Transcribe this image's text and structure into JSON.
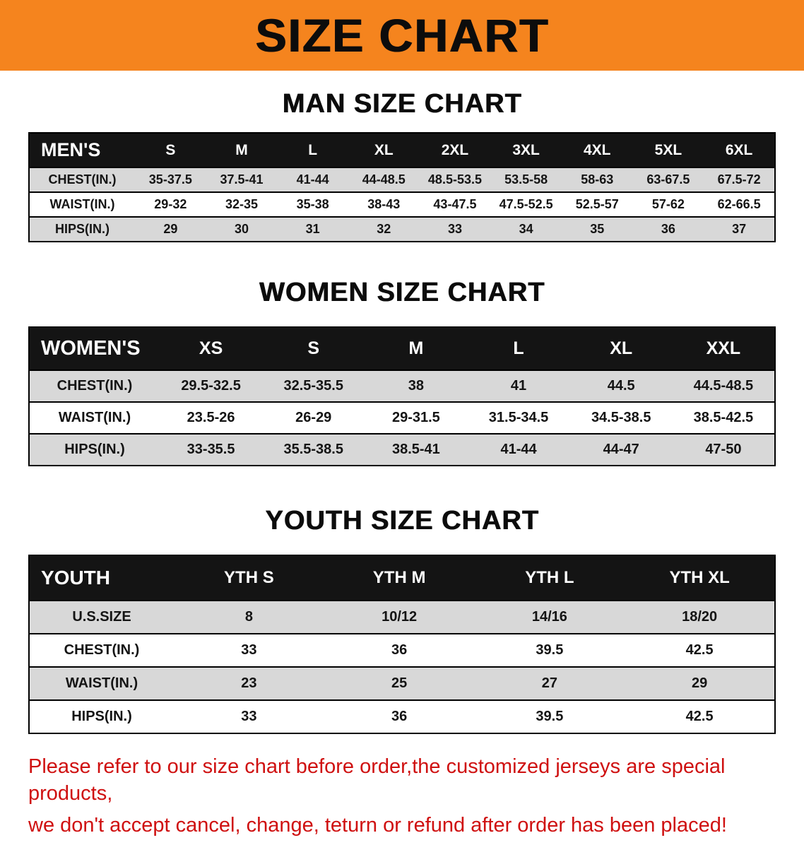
{
  "banner": {
    "title": "SIZE CHART"
  },
  "colors": {
    "banner_bg": "#f5841e",
    "header_bg": "#141414",
    "row_alt": "#d8d8d8",
    "disclaimer_text": "#cf1010"
  },
  "sections": [
    {
      "heading": "MAN SIZE CHART",
      "table": {
        "header": [
          "MEN'S",
          "S",
          "M",
          "L",
          "XL",
          "2XL",
          "3XL",
          "4XL",
          "5XL",
          "6XL"
        ],
        "rows": [
          [
            "CHEST(IN.)",
            "35-37.5",
            "37.5-41",
            "41-44",
            "44-48.5",
            "48.5-53.5",
            "53.5-58",
            "58-63",
            "63-67.5",
            "67.5-72"
          ],
          [
            "WAIST(IN.)",
            "29-32",
            "32-35",
            "35-38",
            "38-43",
            "43-47.5",
            "47.5-52.5",
            "52.5-57",
            "57-62",
            "62-66.5"
          ],
          [
            "HIPS(IN.)",
            "29",
            "30",
            "31",
            "32",
            "33",
            "34",
            "35",
            "36",
            "37"
          ]
        ]
      }
    },
    {
      "heading": "WOMEN SIZE CHART",
      "table": {
        "header": [
          "WOMEN'S",
          "XS",
          "S",
          "M",
          "L",
          "XL",
          "XXL"
        ],
        "rows": [
          [
            "CHEST(IN.)",
            "29.5-32.5",
            "32.5-35.5",
            "38",
            "41",
            "44.5",
            "44.5-48.5"
          ],
          [
            "WAIST(IN.)",
            "23.5-26",
            "26-29",
            "29-31.5",
            "31.5-34.5",
            "34.5-38.5",
            "38.5-42.5"
          ],
          [
            "HIPS(IN.)",
            "33-35.5",
            "35.5-38.5",
            "38.5-41",
            "41-44",
            "44-47",
            "47-50"
          ]
        ]
      }
    },
    {
      "heading": "YOUTH SIZE CHART",
      "table": {
        "header": [
          "YOUTH",
          "YTH S",
          "YTH M",
          "YTH L",
          "YTH XL"
        ],
        "rows": [
          [
            "U.S.SIZE",
            "8",
            "10/12",
            "14/16",
            "18/20"
          ],
          [
            "CHEST(IN.)",
            "33",
            "36",
            "39.5",
            "42.5"
          ],
          [
            "WAIST(IN.)",
            "23",
            "25",
            "27",
            "29"
          ],
          [
            "HIPS(IN.)",
            "33",
            "36",
            "39.5",
            "42.5"
          ]
        ]
      }
    }
  ],
  "disclaimer": {
    "lines": [
      "Please refer to our size chart before order,the customized jerseys are special products,",
      "we don't accept cancel, change, teturn or refund after order has been placed!"
    ]
  }
}
